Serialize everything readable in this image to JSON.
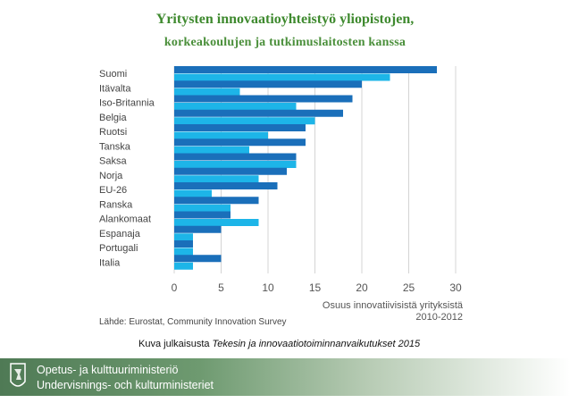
{
  "title_line1": "Yritysten innovaatioyhteistyö yliopistojen,",
  "title_line2": "korkeakoulujen ja tutkimuslaitosten kanssa",
  "chart_data": {
    "type": "bar",
    "orientation": "horizontal",
    "categories": [
      "Suomi",
      "Itävalta",
      "Iso-Britannia",
      "Belgia",
      "Ruotsi",
      "Tanska",
      "Saksa",
      "Norja",
      "EU-26",
      "Ranska",
      "Alankomaat",
      "Espanaja",
      "Portugali",
      "Italia"
    ],
    "series": [
      {
        "values": [
          28,
          20,
          19,
          18,
          14,
          14,
          13,
          12,
          11,
          9,
          6,
          5,
          2,
          5
        ],
        "color": "#1a6fba"
      },
      {
        "values": [
          23,
          7,
          13,
          15,
          10,
          8,
          13,
          9,
          4,
          6,
          9,
          2,
          2,
          2
        ],
        "color": "#1db5e8"
      }
    ],
    "xlabel_line1": "Osuus innovatiivisistä yrityksistä",
    "xlabel_line2": "2010-2012",
    "xlim": [
      0,
      30
    ],
    "xticks": [
      "0",
      "5",
      "10",
      "15",
      "20",
      "25",
      "30"
    ],
    "grid": true
  },
  "source": "Lähde: Eurostat, Community Innovation Survey",
  "caption": {
    "prefix": "Kuva julkaisusta ",
    "italic": "Tekesin ja innovaatiotoiminnanvaikutukset 2015"
  },
  "footer": {
    "line1": "Opetus- ja kulttuuriministeriö",
    "line2": "Undervisnings- och kulturministeriet"
  }
}
